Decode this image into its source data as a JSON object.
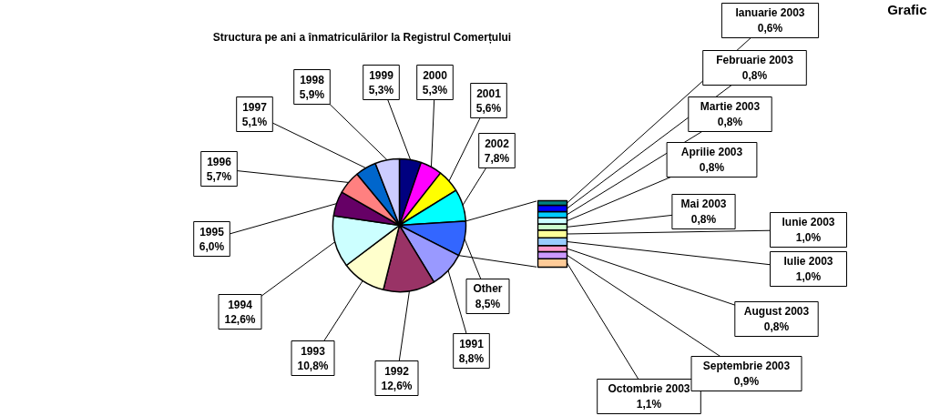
{
  "chart_data": [
    {
      "type": "pie",
      "title": "Structura pe ani a înmatriculărilor la Registrul Comerțului",
      "categories": [
        "1999",
        "2000",
        "2001",
        "2002",
        "Other",
        "1991",
        "1992",
        "1993",
        "1994",
        "1995",
        "1996",
        "1997",
        "1998"
      ],
      "values": [
        5.3,
        5.3,
        5.6,
        7.8,
        8.5,
        8.8,
        12.6,
        10.8,
        12.6,
        6.0,
        5.7,
        5.1,
        5.9
      ],
      "value_labels": [
        "5,3%",
        "5,3%",
        "5,6%",
        "7,8%",
        "8,5%",
        "8,8%",
        "12,6%",
        "10,8%",
        "12,6%",
        "6,0%",
        "5,7%",
        "5,1%",
        "5,9%"
      ],
      "colors": [
        "#000080",
        "#ff00ff",
        "#ffff00",
        "#00ffff",
        "#3366ff",
        "#9999ff",
        "#993366",
        "#ffffcc",
        "#ccffff",
        "#660066",
        "#ff8080",
        "#0066cc",
        "#ccccff"
      ]
    },
    {
      "type": "bar",
      "stacked": true,
      "categories": [
        null
      ],
      "annotations": [
        "Grafic"
      ],
      "series": [
        {
          "name": "Octombrie 2003",
          "color": "#ffcc99",
          "values": [
            1.1
          ],
          "value_labels": [
            "1,1%"
          ]
        },
        {
          "name": "Septembrie 2003",
          "color": "#cc99ff",
          "values": [
            0.9
          ],
          "value_labels": [
            "0,9%"
          ]
        },
        {
          "name": "August 2003",
          "color": "#ff99cc",
          "values": [
            0.8
          ],
          "value_labels": [
            "0,8%"
          ]
        },
        {
          "name": "Iulie 2003",
          "color": "#99ccff",
          "values": [
            1.0
          ],
          "value_labels": [
            "1,0%"
          ]
        },
        {
          "name": "Iunie 2003",
          "color": "#ffff99",
          "values": [
            1.0
          ],
          "value_labels": [
            "1,0%"
          ]
        },
        {
          "name": "Mai 2003",
          "color": "#ccffcc",
          "values": [
            0.8
          ],
          "value_labels": [
            "0,8%"
          ]
        },
        {
          "name": "Aprilie 2003",
          "color": "#ccffff",
          "values": [
            0.8
          ],
          "value_labels": [
            "0,8%"
          ]
        },
        {
          "name": "Martie 2003",
          "color": "#00ccff",
          "values": [
            0.8
          ],
          "value_labels": [
            "0,8%"
          ]
        },
        {
          "name": "Februarie 2003",
          "color": "#0000ff",
          "values": [
            0.8
          ],
          "value_labels": [
            "0,8%"
          ]
        },
        {
          "name": "Ianuarie 2003",
          "color": "#008080",
          "values": [
            0.6
          ],
          "value_labels": [
            "0,6%"
          ]
        }
      ]
    }
  ]
}
